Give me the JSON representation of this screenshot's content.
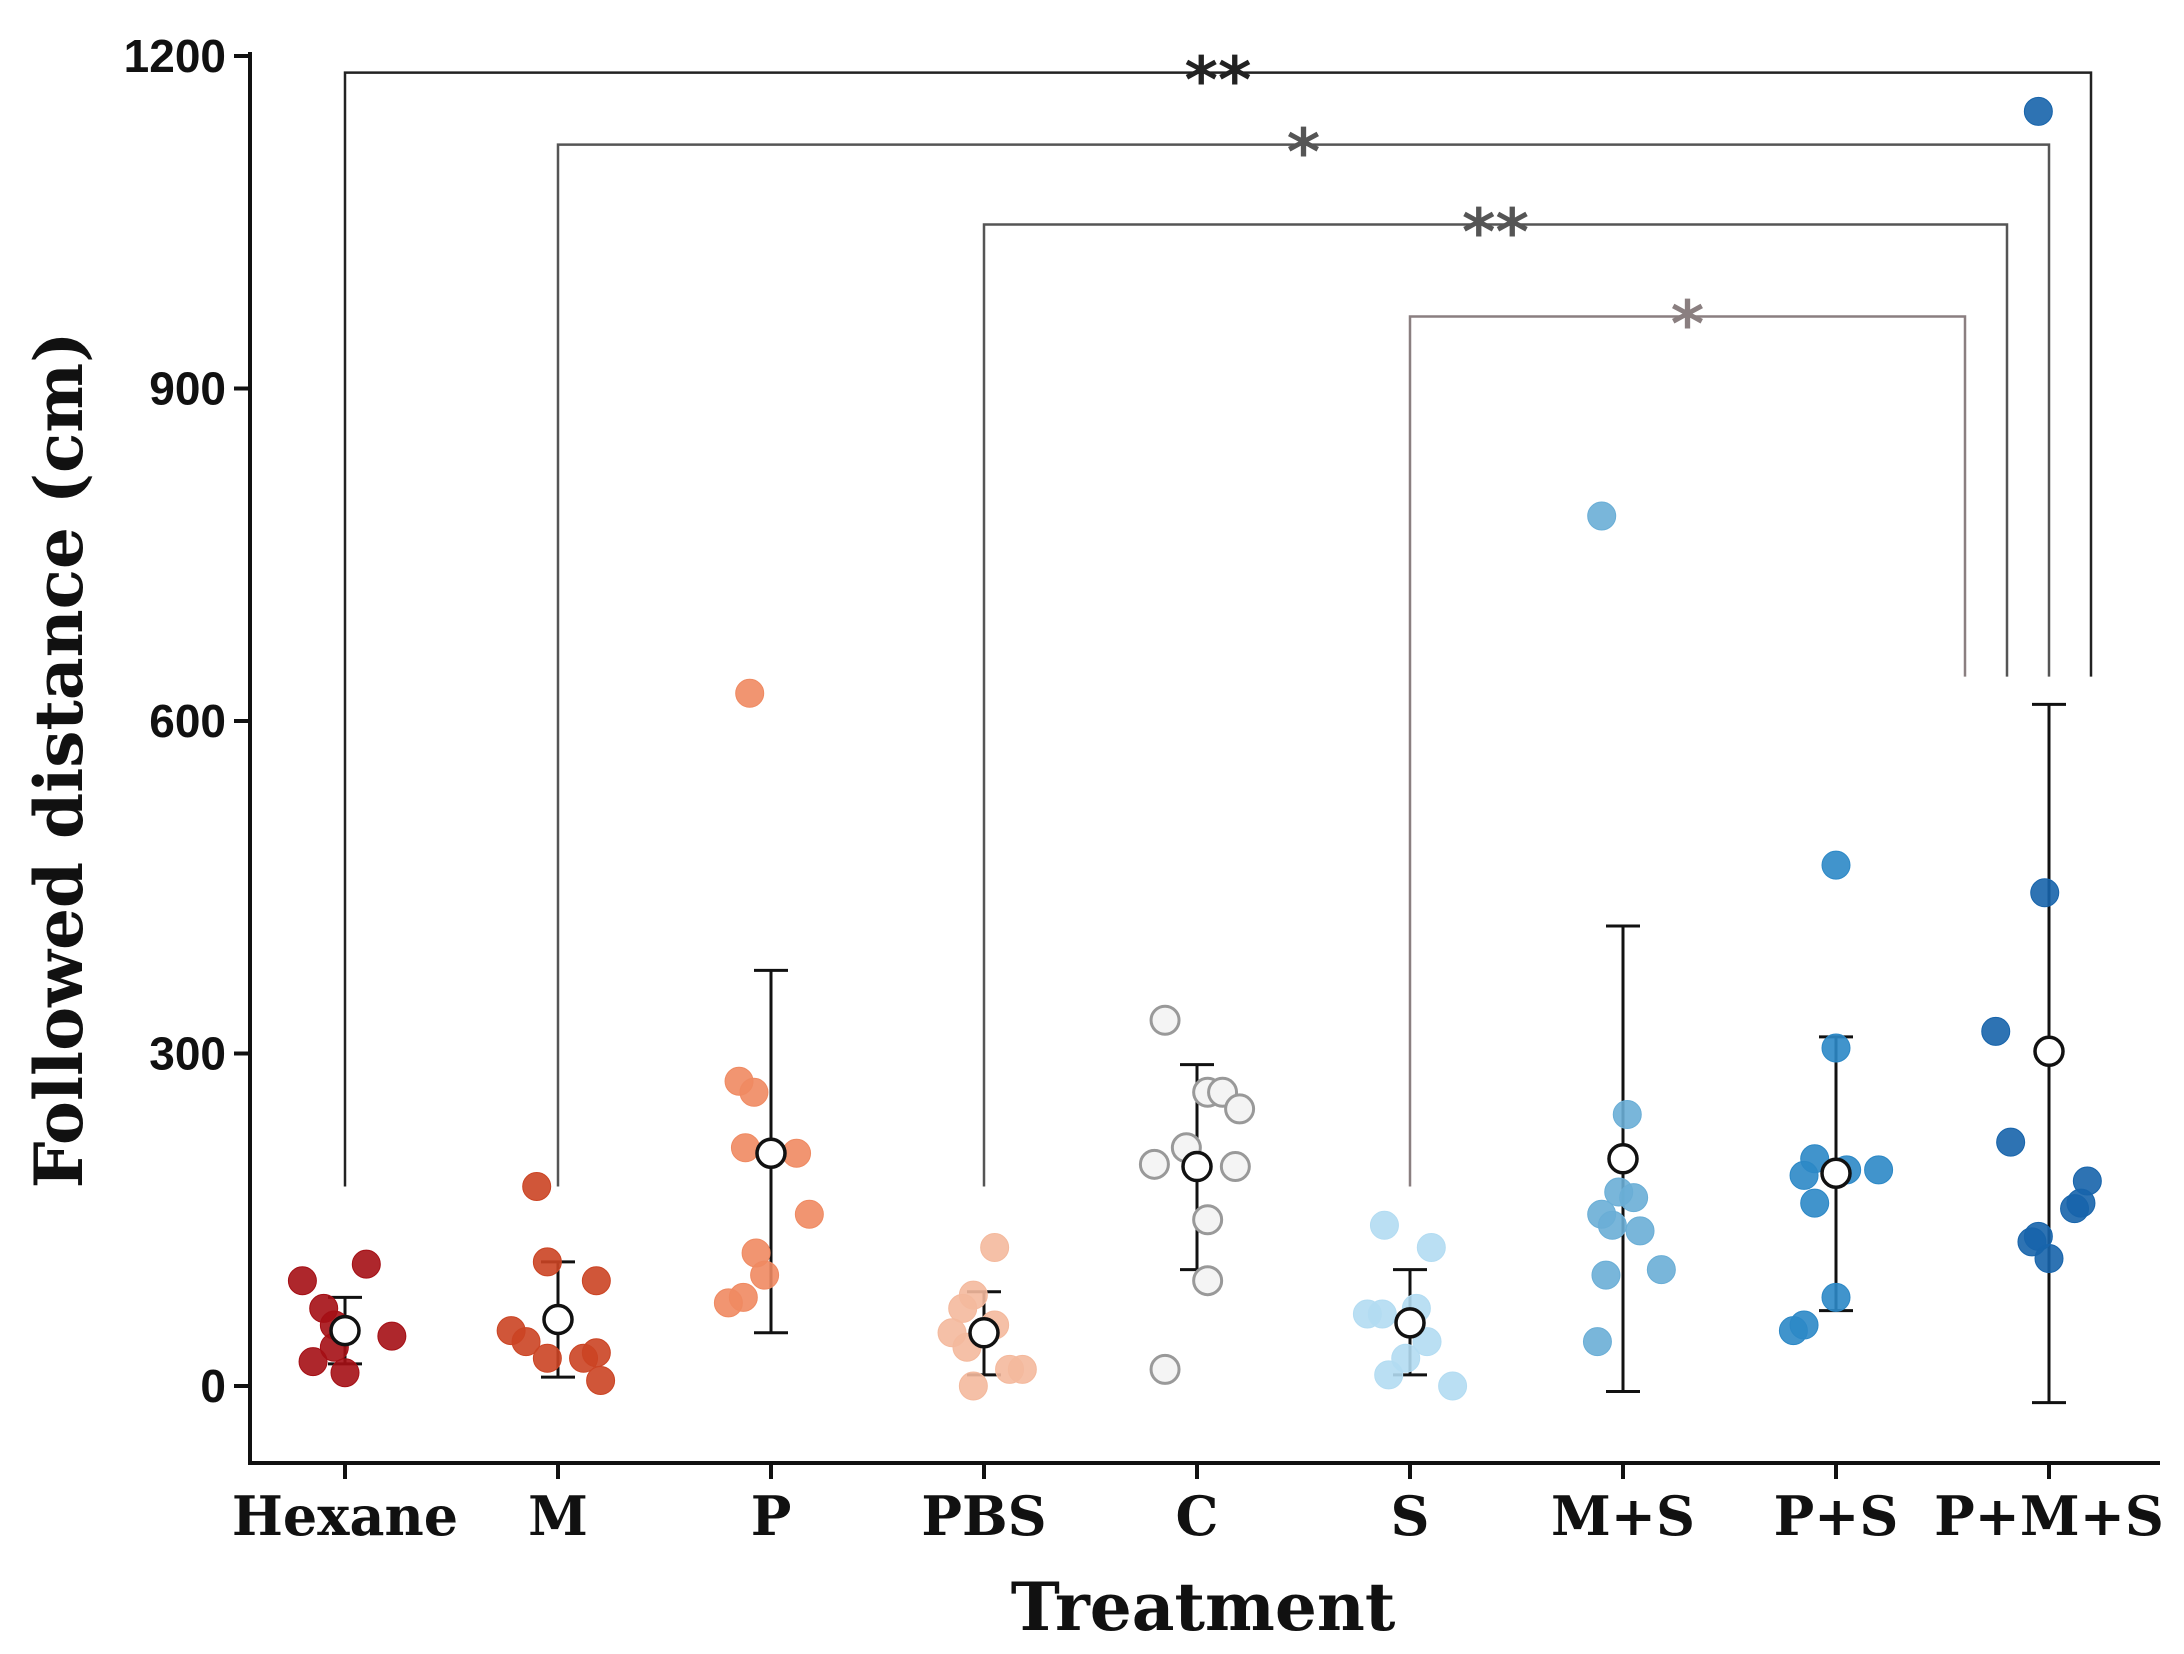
{
  "chart_data": {
    "type": "scatter",
    "xlabel": "Treatment",
    "ylabel": "Followed distance (cm)",
    "ylim": [
      -70,
      1200
    ],
    "yticks": [
      0,
      300,
      600,
      900,
      1200
    ],
    "grid": false,
    "legend": "none",
    "categories": [
      "Hexane",
      "M",
      "P",
      "PBS",
      "C",
      "S",
      "M+S",
      "P+S",
      "P+M+S"
    ],
    "series": [
      {
        "name": "Hexane",
        "color": "#a50f15",
        "hollow": false,
        "points": [
          [
            -0.2,
            95
          ],
          [
            -0.1,
            70
          ],
          [
            -0.05,
            55
          ],
          [
            0.1,
            110
          ],
          [
            0.22,
            45
          ],
          [
            -0.15,
            22
          ],
          [
            0.0,
            12
          ],
          [
            -0.05,
            35
          ]
        ],
        "mean": 50,
        "err_low": 20,
        "err_high": 80
      },
      {
        "name": "M",
        "color": "#cb4424",
        "hollow": false,
        "points": [
          [
            -0.1,
            180
          ],
          [
            -0.05,
            112
          ],
          [
            0.18,
            95
          ],
          [
            -0.22,
            50
          ],
          [
            -0.15,
            40
          ],
          [
            -0.05,
            25
          ],
          [
            0.12,
            25
          ],
          [
            0.18,
            30
          ],
          [
            0.2,
            5
          ]
        ],
        "mean": 60,
        "err_low": 8,
        "err_high": 112
      },
      {
        "name": "P",
        "color": "#ef8a62",
        "hollow": false,
        "points": [
          [
            -0.1,
            625
          ],
          [
            -0.15,
            275
          ],
          [
            -0.08,
            265
          ],
          [
            -0.12,
            215
          ],
          [
            0.12,
            210
          ],
          [
            0.18,
            155
          ],
          [
            -0.07,
            120
          ],
          [
            -0.03,
            100
          ],
          [
            -0.13,
            80
          ],
          [
            -0.2,
            75
          ]
        ],
        "mean": 210,
        "err_low": 48,
        "err_high": 375
      },
      {
        "name": "PBS",
        "color": "#f4b99d",
        "hollow": false,
        "points": [
          [
            0.05,
            125
          ],
          [
            -0.05,
            82
          ],
          [
            -0.1,
            70
          ],
          [
            0.05,
            55
          ],
          [
            -0.15,
            48
          ],
          [
            -0.08,
            35
          ],
          [
            0.12,
            15
          ],
          [
            0.18,
            15
          ],
          [
            -0.05,
            0
          ]
        ],
        "mean": 48,
        "err_low": 10,
        "err_high": 85
      },
      {
        "name": "C",
        "color": "#999999",
        "hollow": true,
        "points": [
          [
            -0.15,
            330
          ],
          [
            0.05,
            265
          ],
          [
            0.12,
            265
          ],
          [
            0.2,
            250
          ],
          [
            -0.05,
            215
          ],
          [
            -0.2,
            200
          ],
          [
            0.18,
            198
          ],
          [
            0.05,
            150
          ],
          [
            0.05,
            95
          ],
          [
            -0.15,
            15
          ]
        ],
        "mean": 198,
        "err_low": 105,
        "err_high": 290
      },
      {
        "name": "S",
        "color": "#b3dcf2",
        "hollow": false,
        "points": [
          [
            -0.12,
            145
          ],
          [
            0.1,
            125
          ],
          [
            -0.2,
            65
          ],
          [
            -0.13,
            65
          ],
          [
            0.03,
            70
          ],
          [
            0.08,
            40
          ],
          [
            -0.02,
            25
          ],
          [
            -0.1,
            10
          ],
          [
            0.2,
            0
          ]
        ],
        "mean": 57,
        "err_low": 10,
        "err_high": 105
      },
      {
        "name": "M+S",
        "color": "#6aaed6",
        "hollow": false,
        "points": [
          [
            -0.1,
            785
          ],
          [
            0.02,
            245
          ],
          [
            -0.02,
            175
          ],
          [
            0.05,
            170
          ],
          [
            -0.1,
            155
          ],
          [
            -0.05,
            145
          ],
          [
            0.08,
            140
          ],
          [
            0.18,
            105
          ],
          [
            -0.08,
            100
          ],
          [
            -0.12,
            40
          ]
        ],
        "mean": 205,
        "err_low": -5,
        "err_high": 415
      },
      {
        "name": "P+S",
        "color": "#2c88c6",
        "hollow": false,
        "points": [
          [
            0.0,
            470
          ],
          [
            -0.1,
            205
          ],
          [
            0.05,
            195
          ],
          [
            0.2,
            195
          ],
          [
            -0.15,
            190
          ],
          [
            -0.1,
            165
          ],
          [
            0.0,
            80
          ],
          [
            -0.2,
            50
          ],
          [
            -0.15,
            55
          ],
          [
            0.0,
            305
          ]
        ],
        "mean": 192,
        "err_low": 68,
        "err_high": 315
      },
      {
        "name": "P+M+S",
        "color": "#1764ab",
        "hollow": false,
        "points": [
          [
            -0.05,
            1150
          ],
          [
            -0.02,
            445
          ],
          [
            -0.25,
            320
          ],
          [
            -0.18,
            220
          ],
          [
            0.18,
            185
          ],
          [
            0.12,
            160
          ],
          [
            0.15,
            165
          ],
          [
            -0.05,
            135
          ],
          [
            0.0,
            115
          ],
          [
            -0.08,
            130
          ]
        ],
        "mean": 302,
        "err_low": -15,
        "err_high": 615
      }
    ],
    "significance": [
      {
        "from": "Hexane",
        "to": "P+M+S",
        "label": "**",
        "y": 1185,
        "color": "#222222"
      },
      {
        "from": "M",
        "to": "P+M+S",
        "label": "*",
        "y": 1120,
        "color": "#555555"
      },
      {
        "from": "PBS",
        "to": "P+M+S",
        "label": "**",
        "y": 1048,
        "color": "#555555"
      },
      {
        "from": "S",
        "to": "P+M+S",
        "label": "*",
        "y": 965,
        "color": "#8a7f80"
      }
    ]
  }
}
